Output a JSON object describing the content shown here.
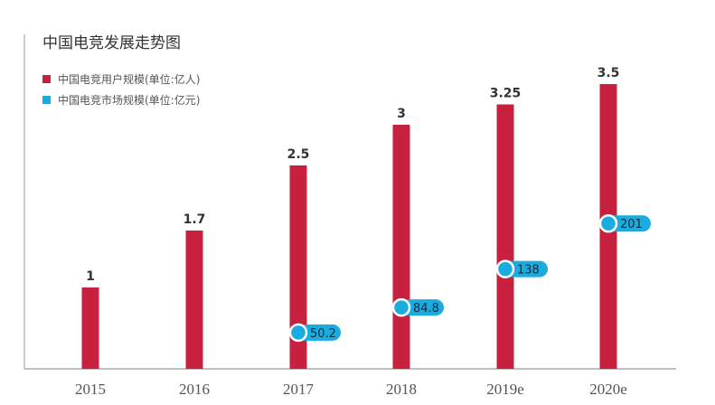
{
  "chart_data": {
    "type": "bar",
    "title": "中国电竞发展走势图",
    "categories": [
      "2015",
      "2016",
      "2017",
      "2018",
      "2019e",
      "2020e"
    ],
    "series": [
      {
        "name": "中国电竞用户规模(单位:亿人)",
        "values": [
          1,
          1.7,
          2.5,
          3,
          3.25,
          3.5
        ],
        "labels": [
          "1",
          "1.7",
          "2.5",
          "3",
          "3.25",
          "3.5"
        ],
        "color": "#c8203f"
      },
      {
        "name": "中国电竞市场规模(单位:亿元)",
        "values": [
          null,
          null,
          50.2,
          84.8,
          138,
          201
        ],
        "labels": [
          "",
          "",
          "50.2",
          "84.8",
          "138",
          "201"
        ],
        "color": "#1aabdf"
      }
    ],
    "xlabel": "",
    "ylabel": "",
    "grid": false,
    "legend": "top-left"
  }
}
